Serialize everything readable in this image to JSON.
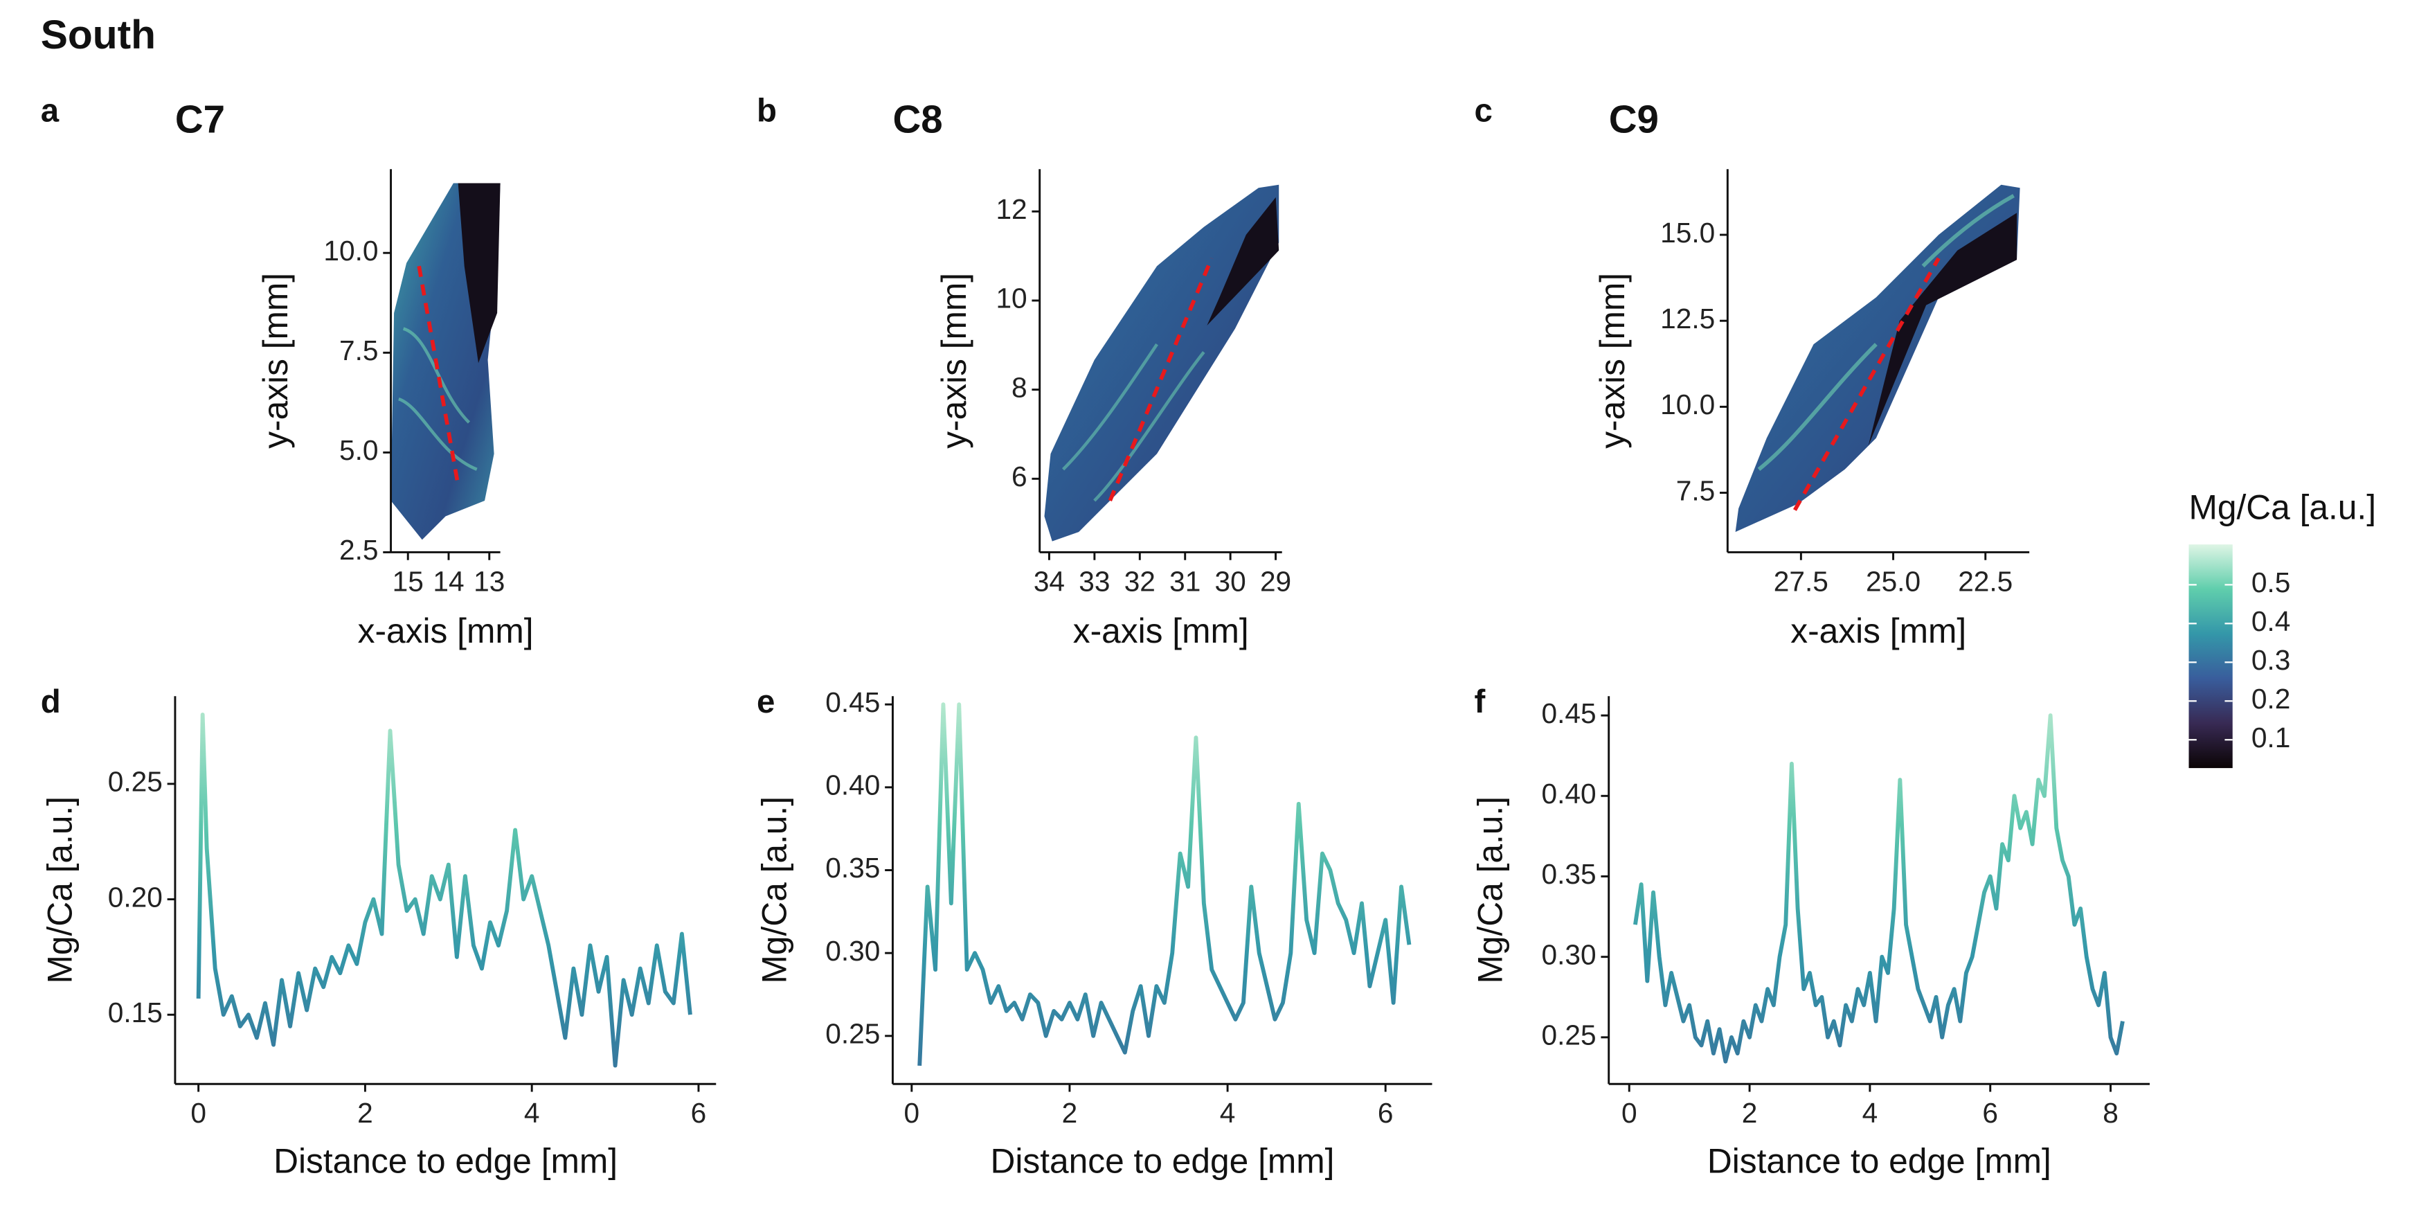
{
  "title": "South",
  "chart_data": [
    {
      "type": "map",
      "panel": "a",
      "title": "C7",
      "x_label": "x-axis [mm]",
      "y_label": "y-axis [mm]",
      "xlim": [
        15.42,
        12.73
      ],
      "ylim": [
        2.5,
        12.1
      ],
      "xticks": [
        15,
        14,
        13
      ],
      "yticks": [
        2.5,
        {
          "value": 5,
          "label": "5.0"
        },
        7.5,
        {
          "value": 10,
          "label": "10.0"
        }
      ]
    },
    {
      "type": "map",
      "panel": "b",
      "title": "C8",
      "x_label": "x-axis [mm]",
      "y_label": "y-axis [mm]",
      "xlim": [
        34.21,
        28.86
      ],
      "ylim": [
        4.35,
        12.95
      ],
      "xticks": [
        34,
        33,
        32,
        31,
        30,
        29
      ],
      "yticks": [
        6,
        8,
        10,
        12
      ]
    },
    {
      "type": "map",
      "panel": "c",
      "title": "C9",
      "x_label": "x-axis [mm]",
      "y_label": "y-axis [mm]",
      "xlim": [
        29.49,
        21.31
      ],
      "ylim": [
        5.77,
        16.91
      ],
      "xticks": [
        27.5,
        {
          "value": 25,
          "label": "25.0"
        },
        22.5
      ],
      "yticks": [
        7.5,
        {
          "value": 10,
          "label": "10.0"
        },
        12.5,
        {
          "value": 15,
          "label": "15.0"
        }
      ]
    },
    {
      "type": "line",
      "panel": "d",
      "x_label": "Distance to edge [mm]",
      "y_label": "Mg/Ca [a.u.]",
      "xlim": [
        -0.28,
        6.21
      ],
      "ylim": [
        0.12,
        0.288
      ],
      "xticks": [
        0,
        2,
        4,
        6
      ],
      "yticks": [
        0.15,
        {
          "value": 0.2,
          "label": "0.20"
        },
        0.25
      ],
      "colors": [
        "#36739c",
        "#3497a9",
        "#5cc6ad",
        "#b9ead0"
      ],
      "x": [
        0,
        0.05,
        0.1,
        0.2,
        0.3,
        0.4,
        0.5,
        0.6,
        0.7,
        0.8,
        0.9,
        1.0,
        1.1,
        1.2,
        1.3,
        1.4,
        1.5,
        1.6,
        1.7,
        1.8,
        1.9,
        2.0,
        2.1,
        2.2,
        2.3,
        2.4,
        2.5,
        2.6,
        2.7,
        2.8,
        2.9,
        3.0,
        3.1,
        3.2,
        3.3,
        3.4,
        3.5,
        3.6,
        3.7,
        3.8,
        3.9,
        4.0,
        4.1,
        4.2,
        4.3,
        4.4,
        4.5,
        4.6,
        4.7,
        4.8,
        4.9,
        5.0,
        5.1,
        5.2,
        5.3,
        5.4,
        5.5,
        5.6,
        5.7,
        5.8,
        5.9
      ],
      "values": [
        0.157,
        0.28,
        0.222,
        0.17,
        0.15,
        0.158,
        0.145,
        0.15,
        0.14,
        0.155,
        0.137,
        0.165,
        0.145,
        0.168,
        0.152,
        0.17,
        0.162,
        0.175,
        0.168,
        0.18,
        0.172,
        0.19,
        0.2,
        0.185,
        0.273,
        0.215,
        0.195,
        0.2,
        0.185,
        0.21,
        0.2,
        0.215,
        0.175,
        0.21,
        0.18,
        0.17,
        0.19,
        0.18,
        0.195,
        0.23,
        0.2,
        0.21,
        0.195,
        0.18,
        0.16,
        0.14,
        0.17,
        0.15,
        0.18,
        0.16,
        0.175,
        0.128,
        0.165,
        0.15,
        0.17,
        0.155,
        0.18,
        0.16,
        0.155,
        0.185,
        0.15
      ]
    },
    {
      "type": "line",
      "panel": "e",
      "x_label": "Distance to edge [mm]",
      "y_label": "Mg/Ca [a.u.]",
      "xlim": [
        -0.24,
        6.59
      ],
      "ylim": [
        0.221,
        0.455
      ],
      "xticks": [
        0,
        2,
        4,
        6
      ],
      "yticks": [
        0.25,
        {
          "value": 0.3,
          "label": "0.30"
        },
        0.35,
        {
          "value": 0.4,
          "label": "0.40"
        },
        0.45
      ],
      "colors": [
        "#36739c",
        "#3497a9",
        "#5cc6ad",
        "#b9ead0"
      ],
      "x": [
        0.1,
        0.2,
        0.3,
        0.4,
        0.5,
        0.6,
        0.7,
        0.8,
        0.9,
        1.0,
        1.1,
        1.2,
        1.3,
        1.4,
        1.5,
        1.6,
        1.7,
        1.8,
        1.9,
        2.0,
        2.1,
        2.2,
        2.3,
        2.4,
        2.5,
        2.6,
        2.7,
        2.8,
        2.9,
        3.0,
        3.1,
        3.2,
        3.3,
        3.4,
        3.5,
        3.6,
        3.7,
        3.8,
        3.9,
        4.0,
        4.1,
        4.2,
        4.3,
        4.4,
        4.5,
        4.6,
        4.7,
        4.8,
        4.9,
        5.0,
        5.1,
        5.2,
        5.3,
        5.4,
        5.5,
        5.6,
        5.7,
        5.8,
        5.9,
        6.0,
        6.1,
        6.2,
        6.3
      ],
      "values": [
        0.232,
        0.34,
        0.29,
        0.45,
        0.33,
        0.45,
        0.29,
        0.3,
        0.29,
        0.27,
        0.28,
        0.265,
        0.27,
        0.26,
        0.275,
        0.27,
        0.25,
        0.265,
        0.26,
        0.27,
        0.26,
        0.275,
        0.25,
        0.27,
        0.26,
        0.25,
        0.24,
        0.265,
        0.28,
        0.25,
        0.28,
        0.27,
        0.3,
        0.36,
        0.34,
        0.43,
        0.33,
        0.29,
        0.28,
        0.27,
        0.26,
        0.27,
        0.34,
        0.3,
        0.28,
        0.26,
        0.27,
        0.3,
        0.39,
        0.32,
        0.3,
        0.36,
        0.35,
        0.33,
        0.32,
        0.3,
        0.33,
        0.28,
        0.3,
        0.32,
        0.27,
        0.34,
        0.305
      ]
    },
    {
      "type": "line",
      "panel": "f",
      "x_label": "Distance to edge [mm]",
      "y_label": "Mg/Ca [a.u.]",
      "xlim": [
        -0.34,
        8.65
      ],
      "ylim": [
        0.221,
        0.462
      ],
      "xticks": [
        0,
        2,
        4,
        6,
        8
      ],
      "yticks": [
        0.25,
        {
          "value": 0.3,
          "label": "0.30"
        },
        0.35,
        {
          "value": 0.4,
          "label": "0.40"
        },
        0.45
      ],
      "colors": [
        "#36739c",
        "#3497a9",
        "#5cc6ad",
        "#b9ead0"
      ],
      "x": [
        0.1,
        0.2,
        0.3,
        0.4,
        0.5,
        0.6,
        0.7,
        0.8,
        0.9,
        1.0,
        1.1,
        1.2,
        1.3,
        1.4,
        1.5,
        1.6,
        1.7,
        1.8,
        1.9,
        2.0,
        2.1,
        2.2,
        2.3,
        2.4,
        2.5,
        2.6,
        2.7,
        2.8,
        2.9,
        3.0,
        3.1,
        3.2,
        3.3,
        3.4,
        3.5,
        3.6,
        3.7,
        3.8,
        3.9,
        4.0,
        4.1,
        4.2,
        4.3,
        4.4,
        4.5,
        4.6,
        4.7,
        4.8,
        4.9,
        5.0,
        5.1,
        5.2,
        5.3,
        5.4,
        5.5,
        5.6,
        5.7,
        5.8,
        5.9,
        6.0,
        6.1,
        6.2,
        6.3,
        6.4,
        6.5,
        6.6,
        6.7,
        6.8,
        6.9,
        7.0,
        7.1,
        7.2,
        7.3,
        7.4,
        7.5,
        7.6,
        7.7,
        7.8,
        7.9,
        8.0,
        8.1,
        8.2
      ],
      "values": [
        0.32,
        0.345,
        0.285,
        0.34,
        0.3,
        0.27,
        0.29,
        0.275,
        0.26,
        0.27,
        0.25,
        0.245,
        0.26,
        0.24,
        0.255,
        0.235,
        0.25,
        0.24,
        0.26,
        0.25,
        0.27,
        0.26,
        0.28,
        0.27,
        0.3,
        0.32,
        0.42,
        0.33,
        0.28,
        0.29,
        0.27,
        0.275,
        0.25,
        0.26,
        0.245,
        0.27,
        0.26,
        0.28,
        0.27,
        0.29,
        0.26,
        0.3,
        0.29,
        0.33,
        0.41,
        0.32,
        0.3,
        0.28,
        0.27,
        0.26,
        0.275,
        0.25,
        0.27,
        0.28,
        0.26,
        0.29,
        0.3,
        0.32,
        0.34,
        0.35,
        0.33,
        0.37,
        0.36,
        0.4,
        0.38,
        0.39,
        0.37,
        0.41,
        0.4,
        0.45,
        0.38,
        0.36,
        0.35,
        0.32,
        0.33,
        0.3,
        0.28,
        0.27,
        0.29,
        0.25,
        0.24,
        0.26
      ]
    }
  ],
  "colorbar": {
    "title": "Mg/Ca [a.u.]",
    "lim": [
      0.027,
      0.604
    ],
    "ticks": [
      0.1,
      0.2,
      0.3,
      0.4,
      0.5
    ],
    "colors": [
      "#0b0405",
      "#382a54",
      "#395d9c",
      "#3497a9",
      "#60ceac",
      "#def5e5"
    ]
  }
}
